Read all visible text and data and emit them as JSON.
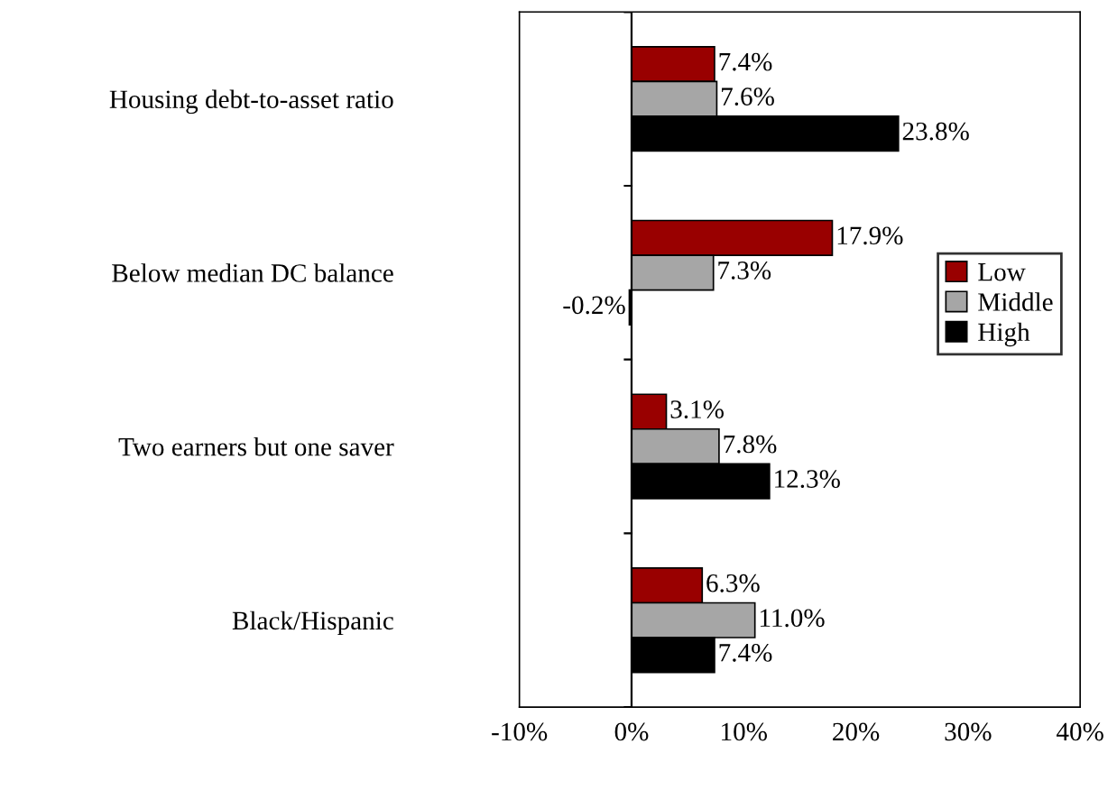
{
  "chart_data": {
    "type": "bar",
    "orientation": "horizontal",
    "categories": [
      "Housing debt-to-asset ratio",
      "Below median DC balance",
      "Two earners but one saver",
      "Black/Hispanic"
    ],
    "series": [
      {
        "name": "Low",
        "color": "#990000",
        "values": [
          7.4,
          17.9,
          3.1,
          6.3
        ],
        "value_labels": [
          "7.4%",
          "17.9%",
          "3.1%",
          "6.3%"
        ]
      },
      {
        "name": "Middle",
        "color": "#a6a6a6",
        "values": [
          7.6,
          7.3,
          7.8,
          11.0
        ],
        "value_labels": [
          "7.6%",
          "7.3%",
          "7.8%",
          "11.0%"
        ]
      },
      {
        "name": "High",
        "color": "#000000",
        "values": [
          23.8,
          -0.2,
          12.3,
          7.4
        ],
        "value_labels": [
          "23.8%",
          "-0.2%",
          "12.3%",
          "7.4%"
        ]
      }
    ],
    "xlim": [
      -10,
      40
    ],
    "xticks": [
      {
        "value": -10,
        "label": "-10%"
      },
      {
        "value": 0,
        "label": "0%"
      },
      {
        "value": 10,
        "label": "10%"
      },
      {
        "value": 20,
        "label": "20%"
      },
      {
        "value": 30,
        "label": "30%"
      },
      {
        "value": 40,
        "label": "40%"
      }
    ],
    "ref_lines": [
      {
        "axis": "x",
        "value": 0
      }
    ],
    "legend": "right"
  }
}
